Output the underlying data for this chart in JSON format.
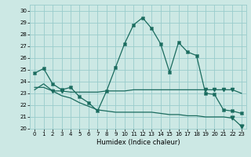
{
  "xlabel": "Humidex (Indice chaleur)",
  "xlim": [
    -0.5,
    23.5
  ],
  "ylim": [
    20,
    30.5
  ],
  "yticks": [
    20,
    21,
    22,
    23,
    24,
    25,
    26,
    27,
    28,
    29,
    30
  ],
  "xticks": [
    0,
    1,
    2,
    3,
    4,
    5,
    6,
    7,
    8,
    9,
    10,
    11,
    12,
    13,
    14,
    15,
    16,
    17,
    18,
    19,
    20,
    21,
    22,
    23
  ],
  "bg_color": "#cce8e4",
  "grid_color": "#99cccc",
  "line_color": "#1a6b5e",
  "series1": [
    24.7,
    25.1,
    23.8,
    23.3,
    23.5,
    22.7,
    22.2,
    21.5,
    23.2,
    25.2,
    27.2,
    28.8,
    29.4,
    28.5,
    27.2,
    24.8,
    27.3,
    26.5,
    26.2,
    23.0,
    22.9,
    21.6,
    21.5,
    21.3
  ],
  "series2": [
    23.3,
    23.8,
    23.2,
    23.2,
    23.1,
    23.1,
    23.1,
    23.1,
    23.2,
    23.2,
    23.2,
    23.3,
    23.3,
    23.3,
    23.3,
    23.3,
    23.3,
    23.3,
    23.3,
    23.3,
    23.3,
    23.3,
    23.3,
    23.0
  ],
  "series3": [
    23.5,
    23.5,
    23.2,
    22.8,
    22.6,
    22.2,
    21.9,
    21.6,
    21.5,
    21.4,
    21.4,
    21.4,
    21.4,
    21.4,
    21.3,
    21.2,
    21.2,
    21.1,
    21.1,
    21.0,
    21.0,
    21.0,
    20.9,
    20.2
  ],
  "s1_marker_idx": [
    0,
    1,
    2,
    3,
    4,
    5,
    6,
    7,
    8,
    9,
    10,
    11,
    12,
    13,
    14,
    15,
    16,
    17,
    18,
    19,
    20,
    21,
    22,
    23
  ],
  "s2_marker_idx": [
    2,
    3,
    19,
    20,
    21,
    22
  ],
  "s3_marker_idx": [
    22,
    23
  ]
}
